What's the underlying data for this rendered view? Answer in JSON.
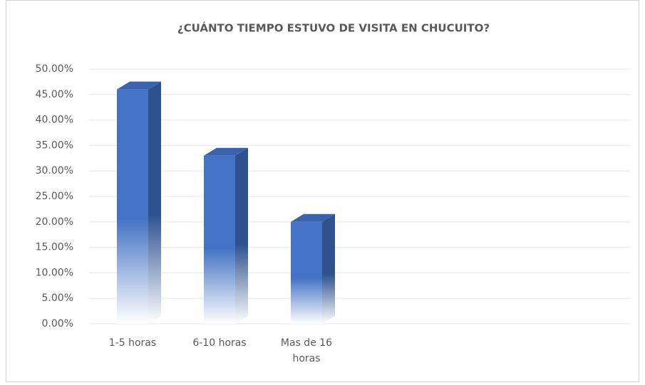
{
  "chart_data": {
    "type": "bar3d",
    "title": "¿CUÁNTO TIEMPO ESTUVO DE VISITA EN CHUCUITO?",
    "categories": [
      "1-5 horas",
      "6-10 horas",
      "Mas de 16 horas"
    ],
    "values": [
      46,
      33,
      20
    ],
    "color": "#4472c4",
    "ylim": [
      0,
      50
    ],
    "yticks": [
      {
        "value": 0,
        "label": "0.00%"
      },
      {
        "value": 5,
        "label": "5.00%"
      },
      {
        "value": 10,
        "label": "10.00%"
      },
      {
        "value": 15,
        "label": "15.00%"
      },
      {
        "value": 20,
        "label": "20.00%"
      },
      {
        "value": 25,
        "label": "25.00%"
      },
      {
        "value": 30,
        "label": "30.00%"
      },
      {
        "value": 35,
        "label": "35.00%"
      },
      {
        "value": 40,
        "label": "40.00%"
      },
      {
        "value": 45,
        "label": "45.00%"
      },
      {
        "value": 50,
        "label": "50.00%"
      }
    ],
    "grid": true
  }
}
